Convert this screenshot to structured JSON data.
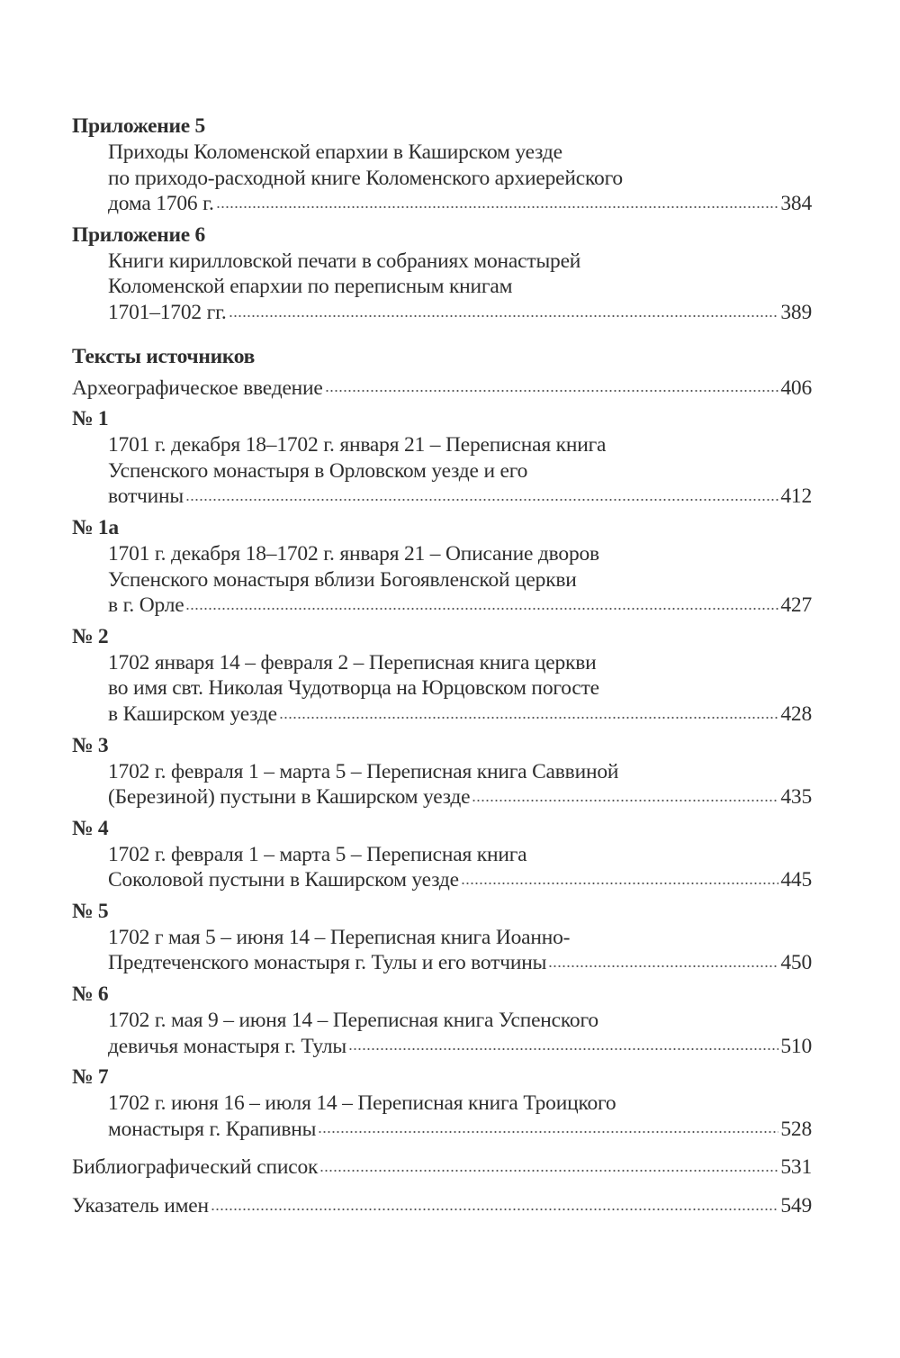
{
  "entries": [
    {
      "heading": "Приложение 5",
      "lines": [
        "Приходы Коломенской епархии в Каширском уезде",
        "по приходо-расходной книге Коломенского архиерейского",
        "дома 1706 г."
      ],
      "page": "384"
    },
    {
      "heading": "Приложение 6",
      "lines": [
        "Книги кирилловской печати в собраниях монастырей",
        "Коломенской епархии по переписным книгам",
        "1701–1702 гг."
      ],
      "page": "389"
    },
    {
      "section": "Тексты источников"
    },
    {
      "lines": [
        "Археографическое введение"
      ],
      "page": "406",
      "flush": true
    },
    {
      "heading": "№ 1",
      "lines": [
        "1701 г. декабря 18–1702 г. января 21 – Переписная книга",
        "Успенского монастыря в Орловском уезде и его",
        "вотчины"
      ],
      "page": "412"
    },
    {
      "heading": "№ 1а",
      "lines": [
        "1701 г. декабря 18–1702 г. января 21 – Описание дворов",
        "Успенского монастыря вблизи Богоявленской церкви",
        "в г. Орле"
      ],
      "page": "427"
    },
    {
      "heading": "№ 2",
      "lines": [
        "1702 января 14 – февраля 2 – Переписная книга церкви",
        "во имя свт. Николая Чудотворца на Юрцовском погосте",
        "в Каширском уезде"
      ],
      "page": "428"
    },
    {
      "heading": "№ 3",
      "lines": [
        "1702 г. февраля 1 – марта 5 – Переписная книга Саввиной",
        "(Березиной) пустыни в Каширском уезде"
      ],
      "page": "435"
    },
    {
      "heading": "№ 4",
      "lines": [
        "1702 г. февраля 1 – марта 5 – Переписная книга",
        "Соколовой пустыни в Каширском уезде"
      ],
      "page": "445"
    },
    {
      "heading": "№ 5",
      "lines": [
        "1702 г мая 5 – июня 14 – Переписная книга Иоанно-",
        "Предтеченского монастыря г. Тулы и его вотчины"
      ],
      "page": "450"
    },
    {
      "heading": "№ 6",
      "lines": [
        "1702 г. мая 9 – июня 14 – Переписная книга Успенского",
        "девичья монастыря г. Тулы"
      ],
      "page": "510"
    },
    {
      "heading": "№ 7",
      "lines": [
        "1702 г. июня 16 – июля 14 – Переписная книга Троицкого",
        "монастыря г. Крапивны"
      ],
      "page": "528"
    },
    {
      "lines": [
        "Библиографический список"
      ],
      "page": "531",
      "flush": true,
      "gap": true
    },
    {
      "lines": [
        "Указатель имен"
      ],
      "page": "549",
      "flush": true,
      "gap": true
    }
  ]
}
